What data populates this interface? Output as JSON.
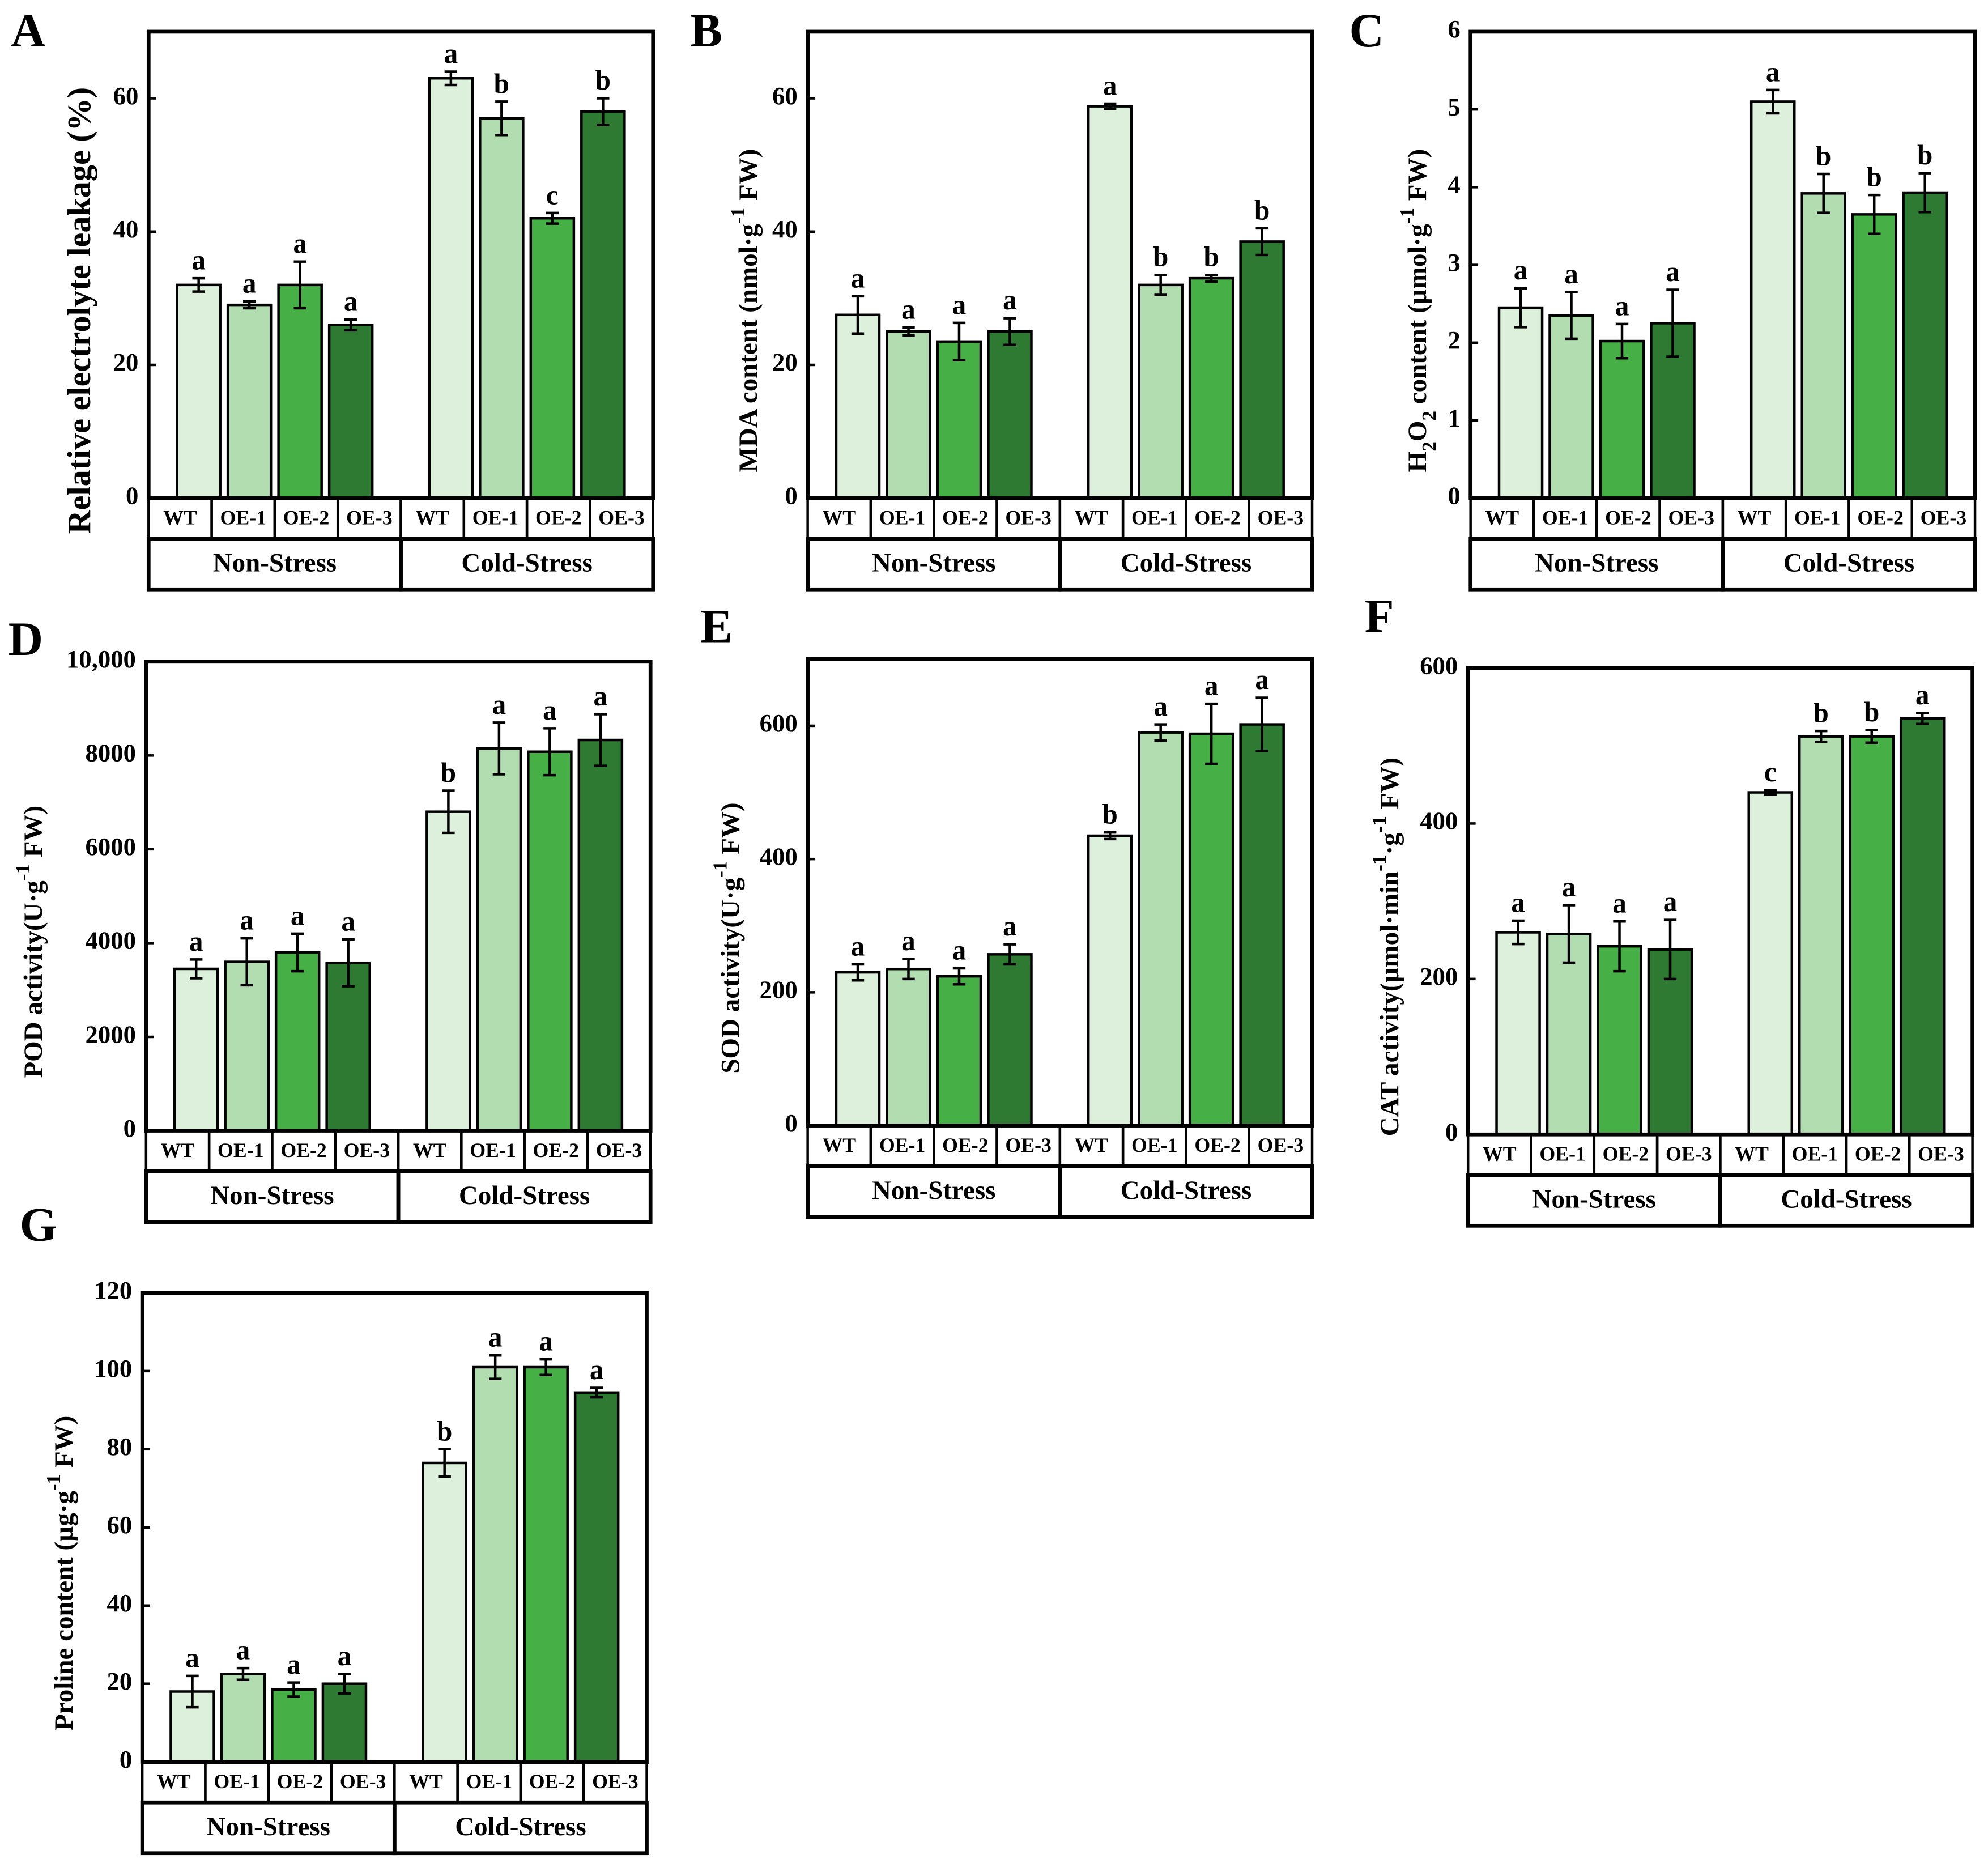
{
  "chart_data": [
    {
      "type": "bar",
      "panel": "A",
      "ylabel": [
        {
          "text": "Relative electrolyte leakage (%)"
        }
      ],
      "categories": [
        "WT",
        "OE-1",
        "OE-2",
        "OE-3",
        "WT",
        "OE-1",
        "OE-2",
        "OE-3"
      ],
      "groups": [
        "Non-Stress",
        "Cold-Stress"
      ],
      "values": [
        32,
        29,
        32,
        26,
        63,
        57,
        42,
        58
      ],
      "errors": [
        1,
        0.5,
        3.5,
        0.8,
        1,
        2.5,
        0.8,
        2
      ],
      "letters": [
        "a",
        "a",
        "a",
        "a",
        "a",
        "b",
        "c",
        "b"
      ],
      "colors": [
        "#dcf0dc",
        "#b1ddb1",
        "#46b046",
        "#2e7a33"
      ],
      "ylim": [
        0,
        70
      ],
      "yticks": [
        0,
        20,
        40,
        60
      ]
    },
    {
      "type": "bar",
      "panel": "B",
      "ylabel": [
        {
          "text": "MDA  content (nmol·g"
        },
        {
          "text": "-1",
          "shift": "super"
        },
        {
          "text": " FW)"
        }
      ],
      "categories": [
        "WT",
        "OE-1",
        "OE-2",
        "OE-3",
        "WT",
        "OE-1",
        "OE-2",
        "OE-3"
      ],
      "groups": [
        "Non-Stress",
        "Cold-Stress"
      ],
      "values": [
        27.5,
        25,
        23.5,
        25,
        58.8,
        32,
        33,
        38.5
      ],
      "errors": [
        2.8,
        0.6,
        2.8,
        2,
        0.4,
        1.5,
        0.5,
        2
      ],
      "letters": [
        "a",
        "a",
        "a",
        "a",
        "a",
        "b",
        "b",
        "b"
      ],
      "colors": [
        "#dcf0dc",
        "#b1ddb1",
        "#46b046",
        "#2e7a33"
      ],
      "ylim": [
        0,
        70
      ],
      "yticks": [
        0,
        20,
        40,
        60
      ]
    },
    {
      "type": "bar",
      "panel": "C",
      "ylabel": [
        {
          "text": "H"
        },
        {
          "text": "2",
          "shift": "sub"
        },
        {
          "text": "O"
        },
        {
          "text": "2",
          "shift": "sub"
        },
        {
          "text": "  content (µmol·g"
        },
        {
          "text": "-1",
          "shift": "super"
        },
        {
          "text": " FW)"
        }
      ],
      "categories": [
        "WT",
        "OE-1",
        "OE-2",
        "OE-3",
        "WT",
        "OE-1",
        "OE-2",
        "OE-3"
      ],
      "groups": [
        "Non-Stress",
        "Cold-Stress"
      ],
      "values": [
        2.45,
        2.35,
        2.02,
        2.25,
        5.1,
        3.92,
        3.65,
        3.93
      ],
      "errors": [
        0.25,
        0.3,
        0.22,
        0.43,
        0.15,
        0.25,
        0.25,
        0.25
      ],
      "letters": [
        "a",
        "a",
        "a",
        "a",
        "a",
        "b",
        "b",
        "b"
      ],
      "colors": [
        "#dcf0dc",
        "#b1ddb1",
        "#46b046",
        "#2e7a33"
      ],
      "ylim": [
        0,
        6
      ],
      "yticks": [
        0,
        1,
        2,
        3,
        4,
        5,
        6
      ]
    },
    {
      "type": "bar",
      "panel": "D",
      "ylabel": [
        {
          "text": "POD activity(U·g"
        },
        {
          "text": "-1",
          "shift": "super"
        },
        {
          "text": " FW)"
        }
      ],
      "categories": [
        "WT",
        "OE-1",
        "OE-2",
        "OE-3",
        "WT",
        "OE-1",
        "OE-2",
        "OE-3"
      ],
      "groups": [
        "Non-Stress",
        "Cold-Stress"
      ],
      "values": [
        3450,
        3600,
        3800,
        3580,
        6800,
        8150,
        8080,
        8330
      ],
      "errors": [
        200,
        500,
        400,
        500,
        450,
        550,
        500,
        550
      ],
      "letters": [
        "a",
        "a",
        "a",
        "a",
        "b",
        "a",
        "a",
        "a"
      ],
      "colors": [
        "#dcf0dc",
        "#b1ddb1",
        "#46b046",
        "#2e7a33"
      ],
      "ylim": [
        0,
        10000
      ],
      "yticks": [
        0,
        2000,
        4000,
        6000,
        8000,
        {
          "value": 10000,
          "label": "10,000"
        }
      ]
    },
    {
      "type": "bar",
      "panel": "E",
      "ylabel": [
        {
          "text": "SOD activity(U·g"
        },
        {
          "text": "-1",
          "shift": "super"
        },
        {
          "text": " FW)"
        }
      ],
      "categories": [
        "WT",
        "OE-1",
        "OE-2",
        "OE-3",
        "WT",
        "OE-1",
        "OE-2",
        "OE-3"
      ],
      "groups": [
        "Non-Stress",
        "Cold-Stress"
      ],
      "values": [
        230,
        235,
        224,
        257,
        435,
        590,
        588,
        602
      ],
      "errors": [
        12,
        15,
        12,
        15,
        5,
        12,
        45,
        40
      ],
      "letters": [
        "a",
        "a",
        "a",
        "a",
        "b",
        "a",
        "a",
        "a"
      ],
      "colors": [
        "#dcf0dc",
        "#b1ddb1",
        "#46b046",
        "#2e7a33"
      ],
      "ylim": [
        0,
        700
      ],
      "yticks": [
        0,
        200,
        400,
        600
      ]
    },
    {
      "type": "bar",
      "panel": "F",
      "ylabel": [
        {
          "text": "CAT activity(µmol·min"
        },
        {
          "text": "-1",
          "shift": "super"
        },
        {
          "text": "·g"
        },
        {
          "text": "-1",
          "shift": "super"
        },
        {
          "text": " FW)"
        }
      ],
      "categories": [
        "WT",
        "OE-1",
        "OE-2",
        "OE-3",
        "WT",
        "OE-1",
        "OE-2",
        "OE-3"
      ],
      "groups": [
        "Non-Stress",
        "Cold-Stress"
      ],
      "values": [
        260,
        258,
        242,
        238,
        440,
        512,
        512,
        535
      ],
      "errors": [
        15,
        37,
        32,
        38,
        3,
        7,
        8,
        7
      ],
      "letters": [
        "a",
        "a",
        "a",
        "a",
        "c",
        "b",
        "b",
        "a"
      ],
      "colors": [
        "#dcf0dc",
        "#b1ddb1",
        "#46b046",
        "#2e7a33"
      ],
      "ylim": [
        0,
        600
      ],
      "yticks": [
        0,
        200,
        400,
        600
      ]
    },
    {
      "type": "bar",
      "panel": "G",
      "ylabel": [
        {
          "text": "Proline  content (µg·g"
        },
        {
          "text": "-1",
          "shift": "super"
        },
        {
          "text": " FW)"
        }
      ],
      "categories": [
        "WT",
        "OE-1",
        "OE-2",
        "OE-3",
        "WT",
        "OE-1",
        "OE-2",
        "OE-3"
      ],
      "groups": [
        "Non-Stress",
        "Cold-Stress"
      ],
      "values": [
        18,
        22.5,
        18.5,
        20,
        76.5,
        101,
        101,
        94.5
      ],
      "errors": [
        4,
        1.5,
        1.8,
        2.5,
        3.5,
        3,
        2,
        1.2
      ],
      "letters": [
        "a",
        "a",
        "a",
        "a",
        "b",
        "a",
        "a",
        "a"
      ],
      "colors": [
        "#dcf0dc",
        "#b1ddb1",
        "#46b046",
        "#2e7a33"
      ],
      "ylim": [
        0,
        120
      ],
      "yticks": [
        0,
        20,
        40,
        60,
        80,
        100,
        120
      ]
    }
  ]
}
